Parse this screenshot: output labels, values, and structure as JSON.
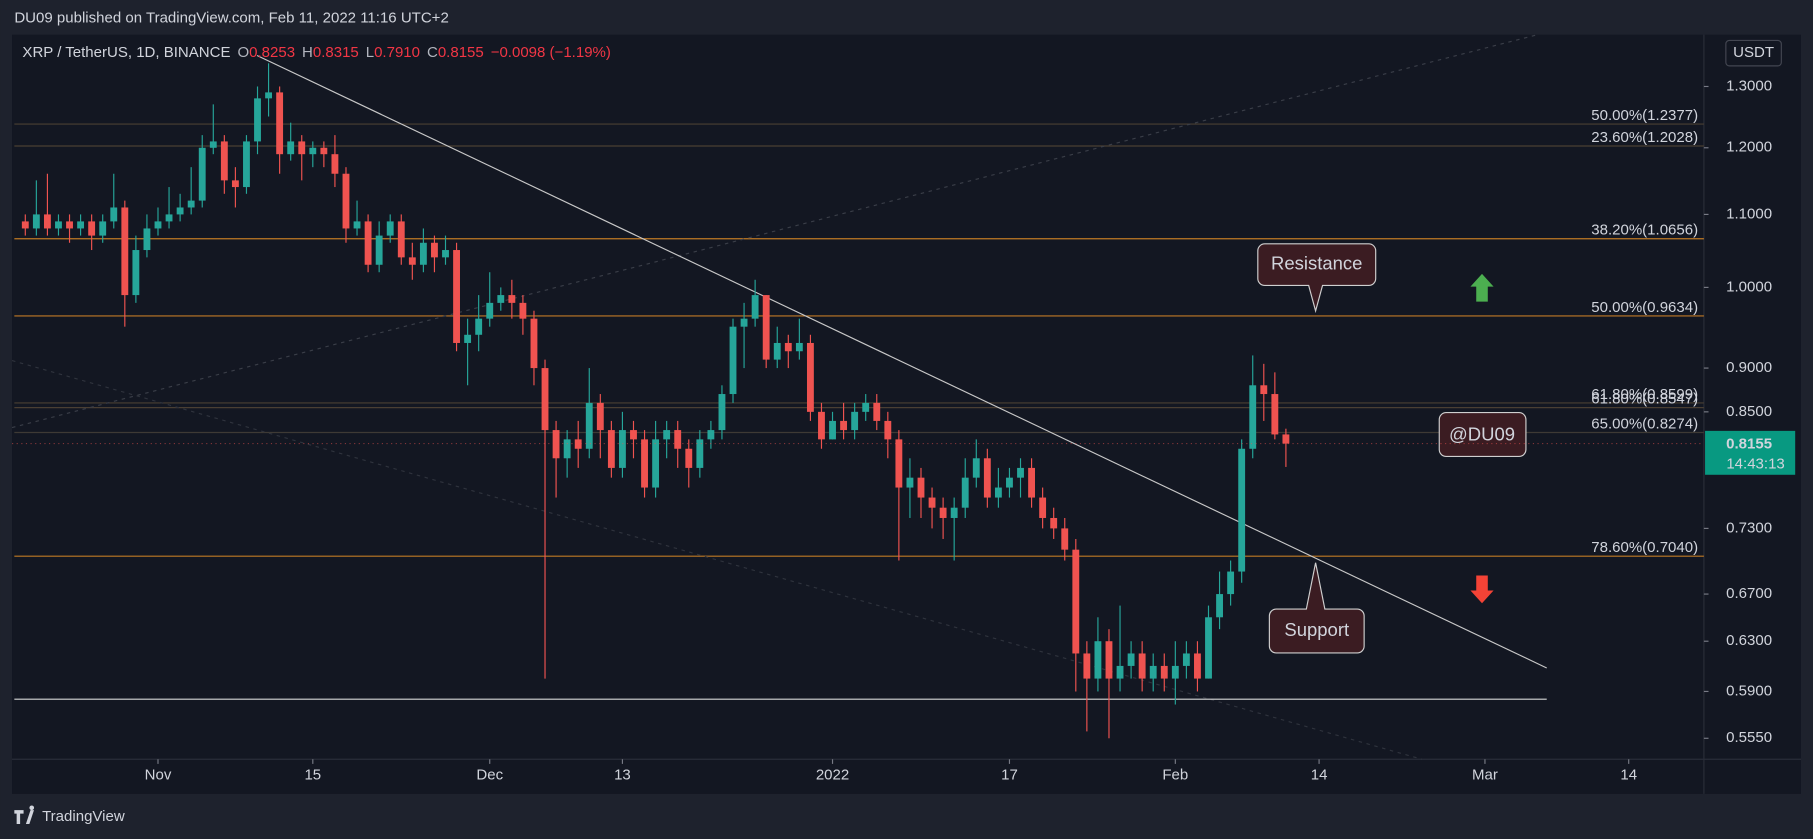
{
  "chart_data": {
    "type": "candlestick",
    "publisher_line": "DU09 published on TradingView.com, Feb 11, 2022 11:16 UTC+2",
    "symbol": "XRP / TetherUS, 1D, BINANCE",
    "ohlc_letters": {
      "open": "O",
      "high": "H",
      "low": "L",
      "close": "C"
    },
    "ohlc_labels": {
      "open": "0.8253",
      "high": "0.8315",
      "low": "0.7910",
      "close": "0.8155"
    },
    "change_label": "−0.0098 (−1.19%)",
    "currency": "USDT",
    "countdown": "14:43:13",
    "brand": "TradingView",
    "up_color": "#26a69a",
    "down_color": "#ef5350",
    "log": true,
    "open": [
      1.09,
      1.08,
      1.1,
      1.08,
      1.09,
      1.08,
      1.09,
      1.07,
      1.09,
      1.11,
      0.99,
      1.05,
      1.08,
      1.09,
      1.1,
      1.11,
      1.12,
      1.2,
      1.21,
      1.15,
      1.14,
      1.21,
      1.28,
      1.29,
      1.19,
      1.21,
      1.19,
      1.2,
      1.19,
      1.16,
      1.08,
      1.09,
      1.03,
      1.07,
      1.09,
      1.04,
      1.03,
      1.06,
      1.04,
      1.05,
      0.93,
      0.94,
      0.96,
      0.98,
      0.99,
      0.98,
      0.96,
      0.9,
      0.83,
      0.8,
      0.82,
      0.81,
      0.86,
      0.83,
      0.79,
      0.83,
      0.82,
      0.77,
      0.82,
      0.83,
      0.81,
      0.79,
      0.82,
      0.83,
      0.87,
      0.95,
      0.96,
      0.99,
      0.91,
      0.93,
      0.92,
      0.93,
      0.85,
      0.82,
      0.84,
      0.83,
      0.85,
      0.86,
      0.84,
      0.82,
      0.77,
      0.78,
      0.76,
      0.75,
      0.74,
      0.75,
      0.78,
      0.8,
      0.76,
      0.77,
      0.78,
      0.79,
      0.76,
      0.74,
      0.73,
      0.71,
      0.62,
      0.6,
      0.63,
      0.6,
      0.61,
      0.62,
      0.6,
      0.61,
      0.6,
      0.61,
      0.62,
      0.6,
      0.65,
      0.67,
      0.69,
      0.81,
      0.88,
      0.87,
      0.8253
    ],
    "high": [
      1.1,
      1.15,
      1.16,
      1.1,
      1.1,
      1.1,
      1.1,
      1.1,
      1.16,
      1.12,
      1.07,
      1.1,
      1.11,
      1.14,
      1.13,
      1.17,
      1.22,
      1.27,
      1.22,
      1.17,
      1.22,
      1.3,
      1.34,
      1.3,
      1.24,
      1.22,
      1.21,
      1.21,
      1.22,
      1.17,
      1.12,
      1.1,
      1.09,
      1.1,
      1.1,
      1.06,
      1.08,
      1.07,
      1.07,
      1.06,
      0.96,
      0.99,
      1.02,
      1.0,
      1.01,
      0.99,
      0.97,
      0.91,
      0.84,
      0.83,
      0.84,
      0.9,
      0.87,
      0.84,
      0.85,
      0.84,
      0.83,
      0.84,
      0.84,
      0.84,
      0.82,
      0.83,
      0.84,
      0.88,
      0.96,
      0.98,
      1.01,
      0.99,
      0.95,
      0.94,
      0.96,
      0.94,
      0.86,
      0.85,
      0.86,
      0.86,
      0.87,
      0.87,
      0.85,
      0.83,
      0.8,
      0.79,
      0.77,
      0.76,
      0.76,
      0.8,
      0.82,
      0.81,
      0.79,
      0.79,
      0.8,
      0.8,
      0.77,
      0.75,
      0.74,
      0.72,
      0.63,
      0.65,
      0.64,
      0.66,
      0.63,
      0.63,
      0.62,
      0.62,
      0.63,
      0.63,
      0.63,
      0.66,
      0.69,
      0.7,
      0.82,
      0.915,
      0.905,
      0.895,
      0.8315
    ],
    "low": [
      1.07,
      1.07,
      1.07,
      1.07,
      1.06,
      1.07,
      1.05,
      1.06,
      1.08,
      0.95,
      0.98,
      1.04,
      1.07,
      1.08,
      1.09,
      1.1,
      1.11,
      1.19,
      1.13,
      1.11,
      1.13,
      1.19,
      1.25,
      1.16,
      1.18,
      1.15,
      1.17,
      1.17,
      1.14,
      1.06,
      1.07,
      1.02,
      1.02,
      1.06,
      1.03,
      1.01,
      1.02,
      1.02,
      1.03,
      0.92,
      0.88,
      0.92,
      0.95,
      0.97,
      0.96,
      0.94,
      0.88,
      0.6,
      0.76,
      0.78,
      0.79,
      0.8,
      0.8,
      0.78,
      0.78,
      0.8,
      0.76,
      0.76,
      0.8,
      0.79,
      0.77,
      0.78,
      0.81,
      0.82,
      0.86,
      0.9,
      0.95,
      0.9,
      0.9,
      0.9,
      0.91,
      0.84,
      0.81,
      0.82,
      0.82,
      0.82,
      0.84,
      0.83,
      0.8,
      0.7,
      0.74,
      0.74,
      0.73,
      0.72,
      0.7,
      0.74,
      0.77,
      0.75,
      0.75,
      0.76,
      0.76,
      0.75,
      0.73,
      0.72,
      0.7,
      0.59,
      0.56,
      0.59,
      0.555,
      0.59,
      0.6,
      0.59,
      0.59,
      0.59,
      0.58,
      0.6,
      0.59,
      0.6,
      0.64,
      0.66,
      0.68,
      0.8,
      0.84,
      0.82,
      0.791
    ],
    "close": [
      1.08,
      1.1,
      1.08,
      1.09,
      1.08,
      1.09,
      1.07,
      1.09,
      1.11,
      0.99,
      1.05,
      1.08,
      1.09,
      1.1,
      1.11,
      1.12,
      1.2,
      1.21,
      1.15,
      1.14,
      1.21,
      1.28,
      1.29,
      1.19,
      1.21,
      1.19,
      1.2,
      1.19,
      1.16,
      1.08,
      1.09,
      1.03,
      1.07,
      1.09,
      1.04,
      1.03,
      1.06,
      1.04,
      1.05,
      0.93,
      0.94,
      0.96,
      0.98,
      0.99,
      0.98,
      0.96,
      0.9,
      0.83,
      0.8,
      0.82,
      0.81,
      0.86,
      0.83,
      0.79,
      0.83,
      0.82,
      0.77,
      0.82,
      0.83,
      0.81,
      0.79,
      0.82,
      0.83,
      0.87,
      0.95,
      0.96,
      0.99,
      0.91,
      0.93,
      0.92,
      0.93,
      0.85,
      0.82,
      0.84,
      0.83,
      0.85,
      0.86,
      0.84,
      0.82,
      0.77,
      0.78,
      0.76,
      0.75,
      0.74,
      0.75,
      0.78,
      0.8,
      0.76,
      0.77,
      0.78,
      0.79,
      0.76,
      0.74,
      0.73,
      0.71,
      0.62,
      0.6,
      0.63,
      0.6,
      0.61,
      0.62,
      0.6,
      0.61,
      0.6,
      0.61,
      0.62,
      0.6,
      0.65,
      0.67,
      0.69,
      0.81,
      0.88,
      0.87,
      0.8253,
      0.8155
    ],
    "xlim": [
      -1.2,
      151.8
    ],
    "xticks": [
      {
        "value": 12,
        "label": "Nov"
      },
      {
        "value": 26,
        "label": "15"
      },
      {
        "value": 42,
        "label": "Dec"
      },
      {
        "value": 54,
        "label": "13"
      },
      {
        "value": 73,
        "label": "2022"
      },
      {
        "value": 89,
        "label": "17"
      },
      {
        "value": 104,
        "label": "Feb"
      },
      {
        "value": 117,
        "label": "14"
      },
      {
        "value": 132,
        "label": "Mar"
      },
      {
        "value": 145,
        "label": "14"
      }
    ],
    "ylim": [
      0.54,
      1.391
    ],
    "yticks": [
      {
        "value": 1.3,
        "label": "1.3000"
      },
      {
        "value": 1.2,
        "label": "1.2000"
      },
      {
        "value": 1.1,
        "label": "1.1000"
      },
      {
        "value": 1.0,
        "label": "1.0000"
      },
      {
        "value": 0.9,
        "label": "0.9000"
      },
      {
        "value": 0.85,
        "label": "0.8500"
      },
      {
        "value": 0.73,
        "label": "0.7300"
      },
      {
        "value": 0.67,
        "label": "0.6700"
      },
      {
        "value": 0.63,
        "label": "0.6300"
      },
      {
        "value": 0.59,
        "label": "0.5900"
      },
      {
        "value": 0.555,
        "label": "0.5550"
      }
    ],
    "fib_levels": [
      {
        "value": 1.2377,
        "label": "50.00%(1.2377)",
        "color": "#4a3f33"
      },
      {
        "value": 1.2028,
        "label": "23.60%(1.2028)",
        "color": "#4a3f33"
      },
      {
        "value": 1.0656,
        "label": "38.20%(1.0656)",
        "color": "#c07a25"
      },
      {
        "value": 0.9634,
        "label": "50.00%(0.9634)",
        "color": "#c07a25"
      },
      {
        "value": 0.8599,
        "label": "61.80%(0.8599)",
        "color": "#4a3f33"
      },
      {
        "value": 0.8547,
        "label": "61.80%(0.8547)",
        "color": "#4a3f33"
      },
      {
        "value": 0.8274,
        "label": "65.00%(0.8274)",
        "color": "#3e3a35"
      },
      {
        "value": 0.704,
        "label": "78.60%(0.7040)",
        "color": "#c07a25"
      }
    ],
    "annotations": {
      "resistance": "Resistance",
      "support": "Support",
      "author": "@DU09"
    }
  }
}
